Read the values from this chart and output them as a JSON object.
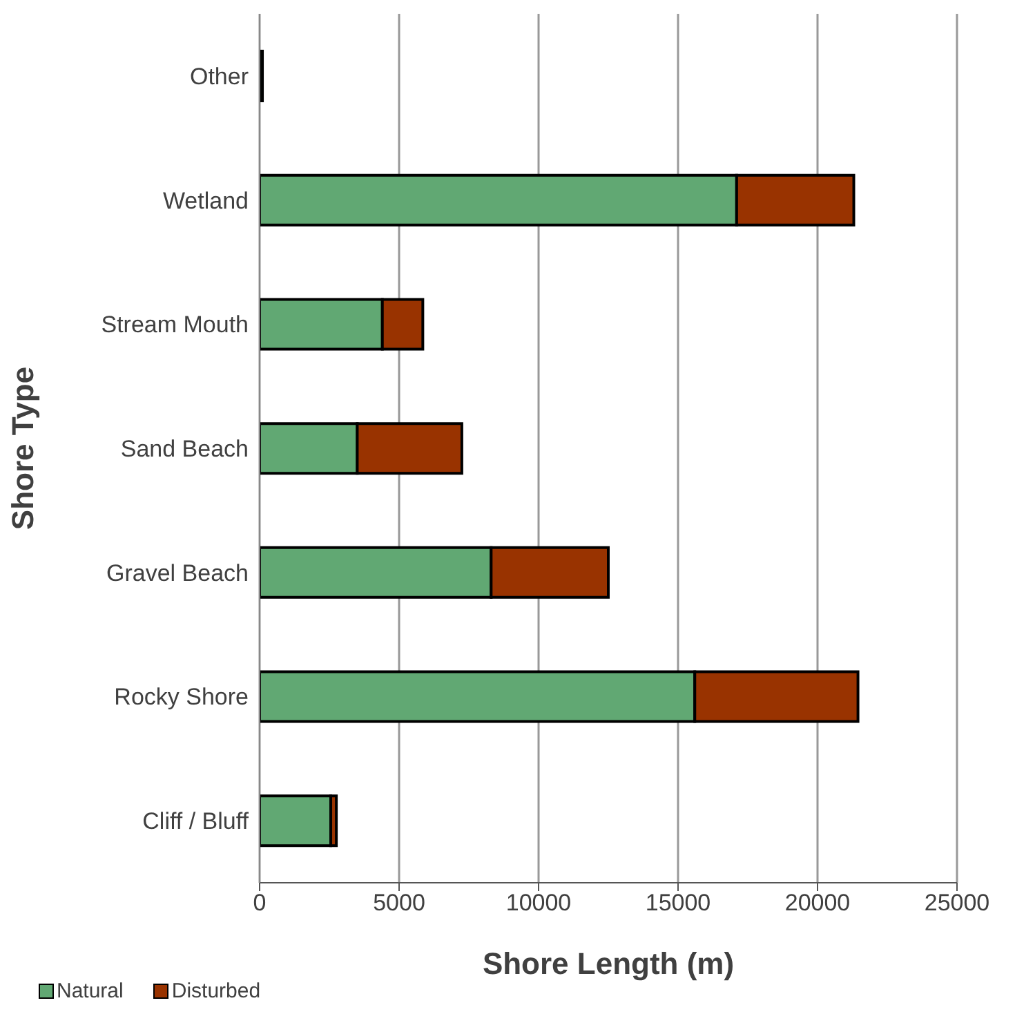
{
  "chart_data": {
    "type": "bar",
    "orientation": "horizontal",
    "stacked": true,
    "xlabel": "Shore Length (m)",
    "ylabel": "Shore Type",
    "categories": [
      "Other",
      "Wetland",
      "Stream Mouth",
      "Sand Beach",
      "Gravel Beach",
      "Rocky Shore",
      "Cliff / Bluff"
    ],
    "series": [
      {
        "name": "Natural",
        "color": "#61a873",
        "values": [
          100,
          17100,
          4400,
          3500,
          8300,
          15600,
          2550
        ]
      },
      {
        "name": "Disturbed",
        "color": "#993300",
        "values": [
          0,
          4200,
          1450,
          3750,
          4200,
          5850,
          200
        ]
      }
    ],
    "xlim": [
      0,
      25000
    ],
    "xticks": [
      0,
      5000,
      10000,
      15000,
      20000,
      25000
    ],
    "grid": "x",
    "legend": "bottom left"
  }
}
